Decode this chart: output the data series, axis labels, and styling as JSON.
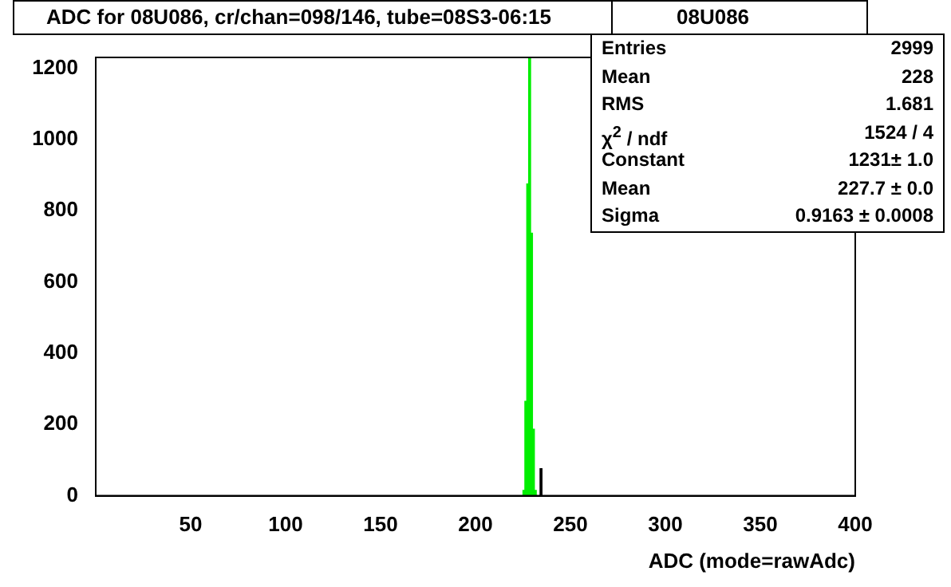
{
  "chart_data": {
    "type": "histogram",
    "title": "ADC for 08U086,  cr/chan=098/146,  tube=08S3-06:15",
    "xlabel": "ADC (mode=rawAdc)",
    "bins": [
      224,
      225,
      226,
      227,
      228,
      229,
      230,
      231,
      232,
      233,
      234,
      235
    ],
    "values": [
      0,
      15,
      265,
      875,
      1230,
      737,
      187,
      15,
      0,
      0,
      76
    ],
    "colors": [
      "#00ee00",
      "#00ee00",
      "#00ee00",
      "#00ee00",
      "#00ee00",
      "#00ee00",
      "#00ee00",
      "#00ee00",
      "#000000",
      "#000000",
      "#000000"
    ],
    "xlim": [
      0,
      400
    ],
    "xticks": [
      50,
      100,
      150,
      200,
      250,
      300,
      350,
      400
    ],
    "ylim": [
      0,
      1230
    ],
    "yticks": [
      0,
      200,
      400,
      600,
      800,
      1000,
      1200
    ],
    "grid": false,
    "legend": false,
    "annotations": [
      "08U086",
      "Entries",
      "2999",
      "Mean",
      "228",
      "RMS",
      "1.681",
      "χ$^{2}$ / ndf",
      "1524 / 4",
      "Constant",
      "1231± 1.0",
      "Mean",
      "227.7 ± 0.0",
      "Sigma",
      "0.9163 ± 0.0008"
    ]
  }
}
